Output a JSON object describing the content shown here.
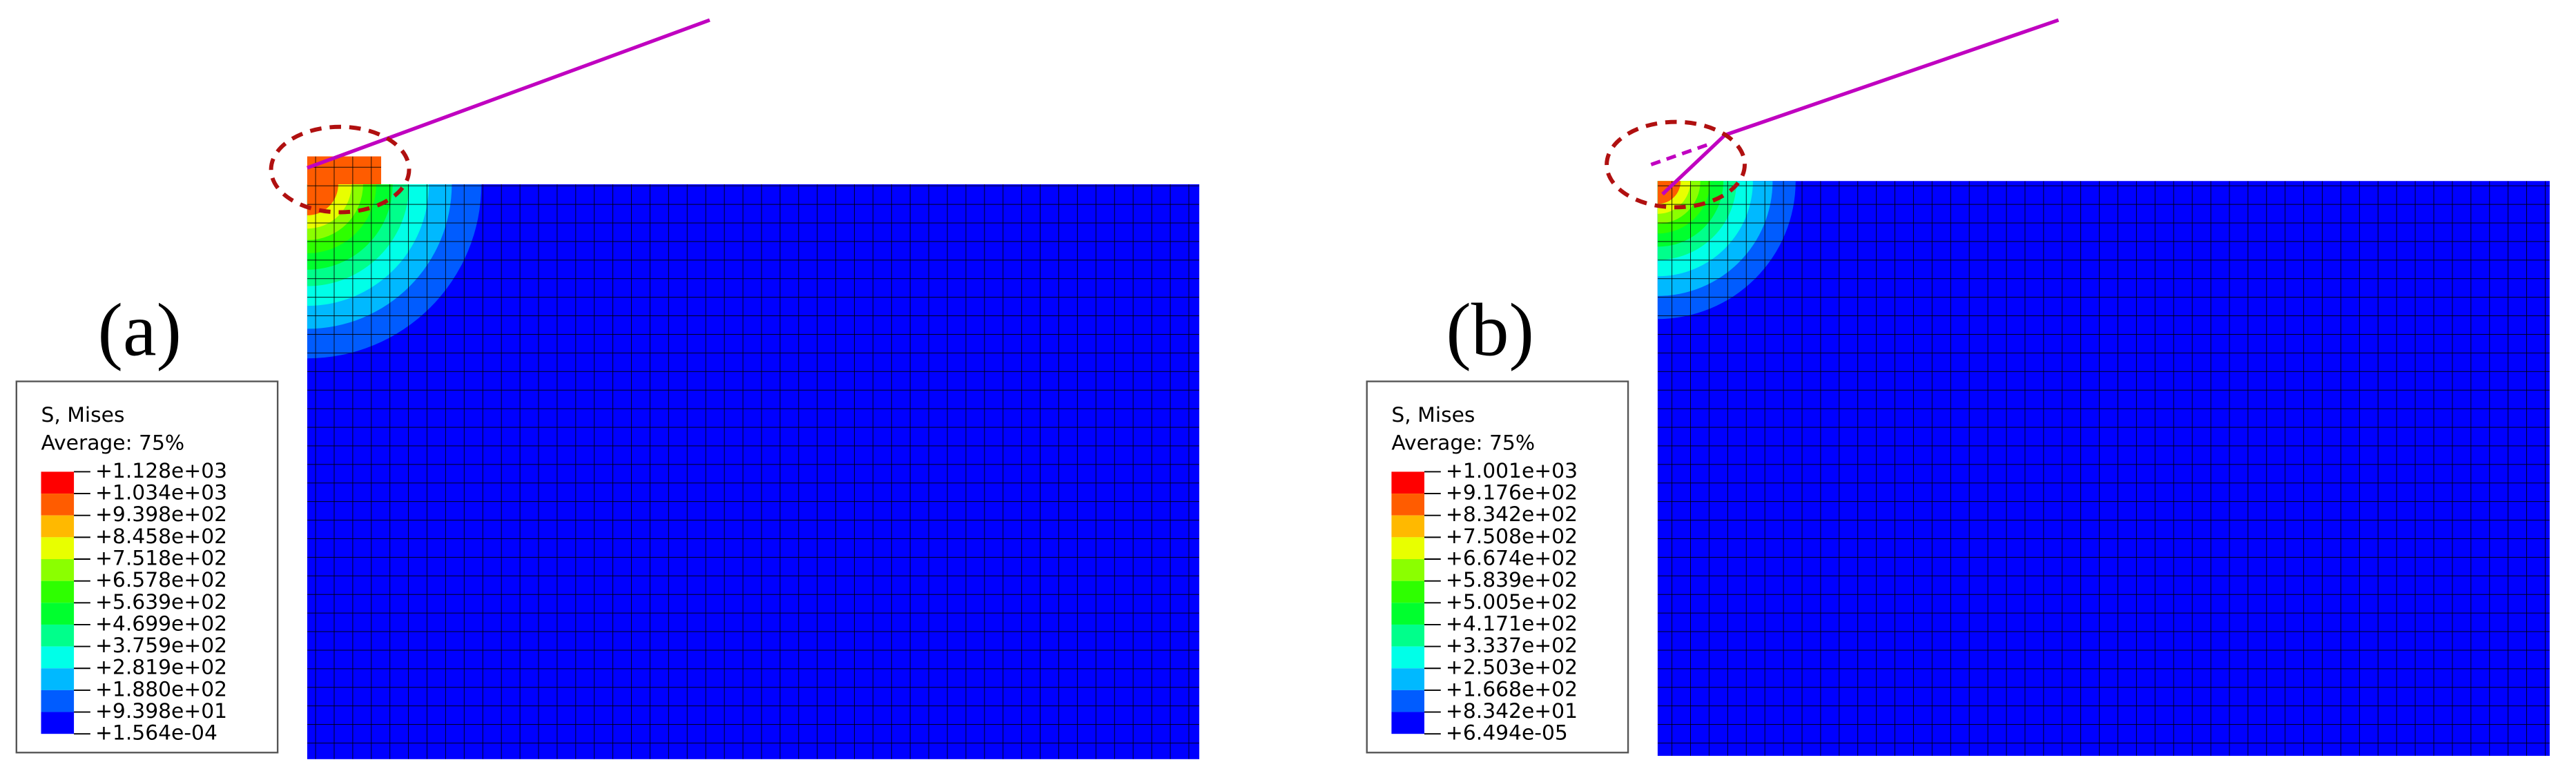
{
  "legend_colors": [
    "#ff0000",
    "#ff5c00",
    "#ffb900",
    "#e8ff00",
    "#8bff00",
    "#2eff00",
    "#00ff2e",
    "#00ff8b",
    "#00ffe8",
    "#00b9ff",
    "#005cff",
    "#0000ff"
  ],
  "panels": [
    {
      "label": "(a)",
      "legend": {
        "title": "S, Mises",
        "subtitle": "Average: 75%",
        "labels": [
          "+1.128e+03",
          "+1.034e+03",
          "+9.398e+02",
          "+8.458e+02",
          "+7.518e+02",
          "+6.578e+02",
          "+5.639e+02",
          "+4.699e+02",
          "+3.759e+02",
          "+2.819e+02",
          "+1.880e+02",
          "+9.398e+01",
          "+1.564e-04"
        ]
      }
    },
    {
      "label": "(b)",
      "legend": {
        "title": "S, Mises",
        "subtitle": "Average: 75%",
        "labels": [
          "+1.001e+03",
          "+9.176e+02",
          "+8.342e+02",
          "+7.508e+02",
          "+6.674e+02",
          "+5.839e+02",
          "+5.005e+02",
          "+4.171e+02",
          "+3.337e+02",
          "+2.503e+02",
          "+1.668e+02",
          "+8.342e+01",
          "+6.494e-05"
        ]
      }
    }
  ]
}
